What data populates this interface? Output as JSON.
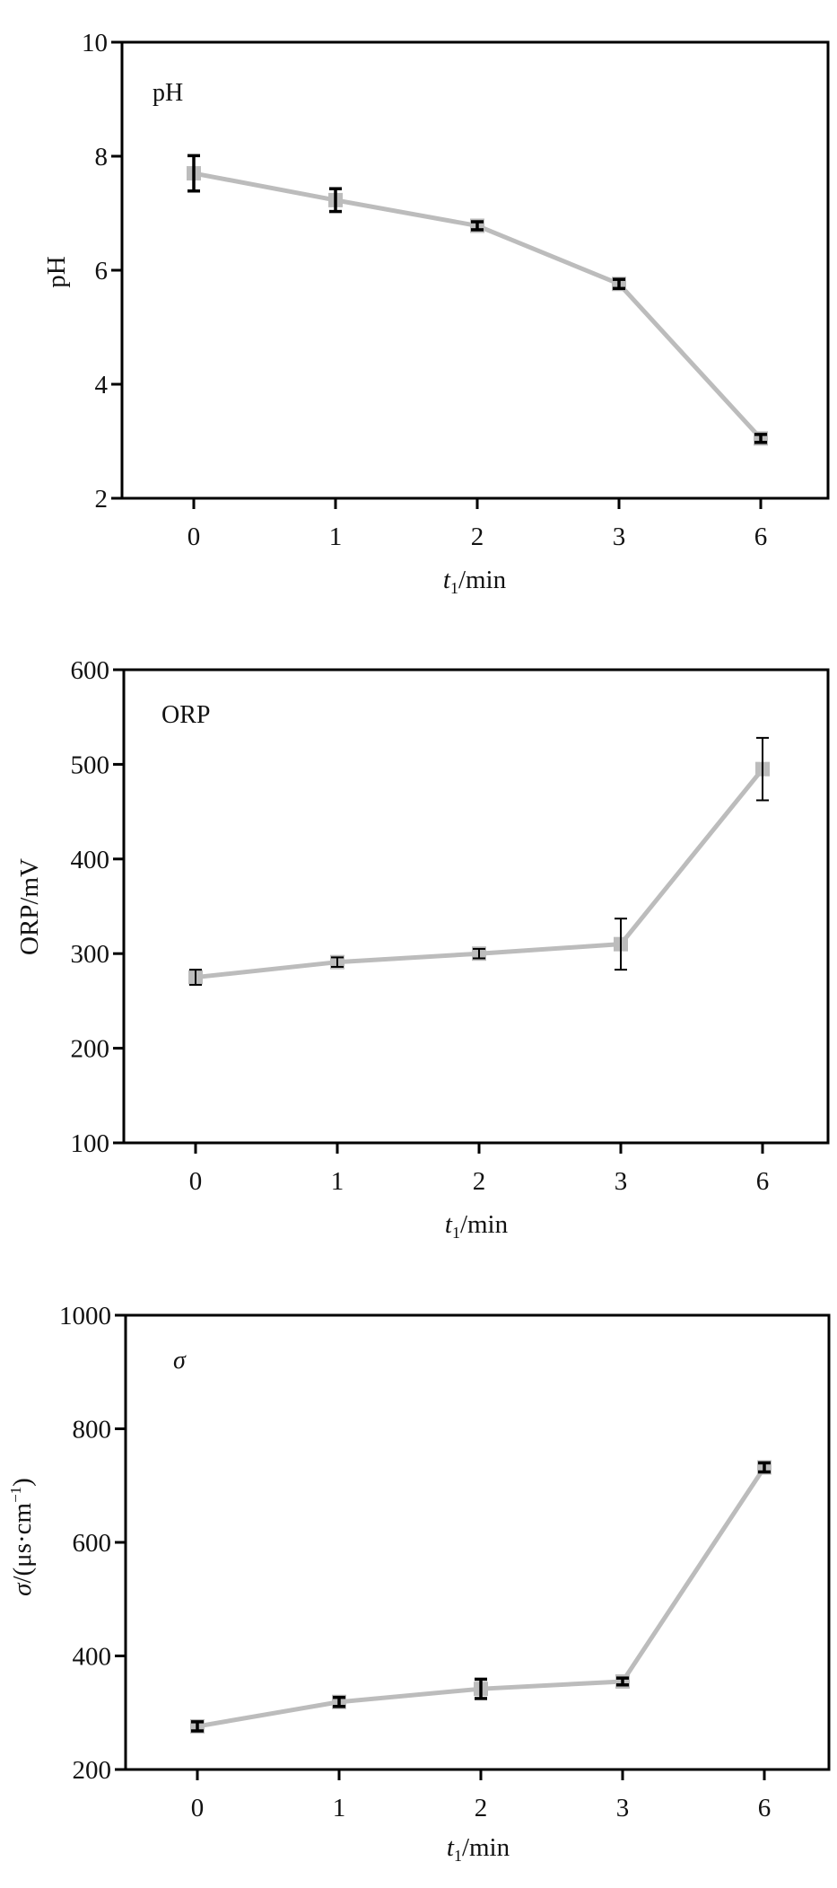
{
  "figure": {
    "panels": [
      {
        "id": "ph",
        "panel_label": "pH",
        "panel_label_italic": false,
        "ylabel": "pH",
        "ylabel_italic_prefix": "",
        "xlabel_var": "t",
        "xlabel_sub": "1",
        "xlabel_unit": "/min"
      },
      {
        "id": "orp",
        "panel_label": "ORP",
        "panel_label_italic": false,
        "ylabel": "ORP/mV",
        "ylabel_italic_prefix": "",
        "xlabel_var": "t",
        "xlabel_sub": "1",
        "xlabel_unit": "/min"
      },
      {
        "id": "sigma",
        "panel_label": "σ",
        "panel_label_italic": true,
        "ylabel": "/(μs·cm",
        "ylabel_italic_prefix": "σ",
        "ylabel_sup": "−1",
        "ylabel_suffix": ")",
        "xlabel_var": "t",
        "xlabel_sub": "1",
        "xlabel_unit": "/min"
      }
    ],
    "colors": {
      "line": "#bcbcbc",
      "marker": "#bcbcbc",
      "error_bar": "#000000",
      "axes": "#000000"
    }
  },
  "chart_data": [
    {
      "type": "line",
      "title": "pH",
      "xlabel": "t1/min",
      "ylabel": "pH",
      "categories": [
        "0",
        "1",
        "2",
        "3",
        "6"
      ],
      "values": [
        7.7,
        7.23,
        6.78,
        5.76,
        3.05
      ],
      "errors": [
        0.31,
        0.2,
        0.07,
        0.08,
        0.07
      ],
      "ylim": [
        2,
        10
      ],
      "yticks": [
        2,
        4,
        6,
        8,
        10
      ],
      "grid": false,
      "legend": null
    },
    {
      "type": "line",
      "title": "ORP",
      "xlabel": "t1/min",
      "ylabel": "ORP/mV",
      "categories": [
        "0",
        "1",
        "2",
        "3",
        "6"
      ],
      "values": [
        275,
        291,
        300,
        310,
        495
      ],
      "errors": [
        8,
        5,
        5,
        27,
        33
      ],
      "ylim": [
        100,
        600
      ],
      "yticks": [
        100,
        200,
        300,
        400,
        500,
        600
      ],
      "grid": false,
      "legend": null
    },
    {
      "type": "line",
      "title": "σ",
      "xlabel": "t1/min",
      "ylabel": "σ/(μs·cm−1)",
      "categories": [
        "0",
        "1",
        "2",
        "3",
        "6"
      ],
      "values": [
        276,
        319,
        342,
        355,
        732
      ],
      "errors": [
        8,
        8,
        17,
        6,
        8
      ],
      "ylim": [
        200,
        1000
      ],
      "yticks": [
        200,
        400,
        600,
        800,
        1000
      ],
      "grid": false,
      "legend": null
    }
  ]
}
